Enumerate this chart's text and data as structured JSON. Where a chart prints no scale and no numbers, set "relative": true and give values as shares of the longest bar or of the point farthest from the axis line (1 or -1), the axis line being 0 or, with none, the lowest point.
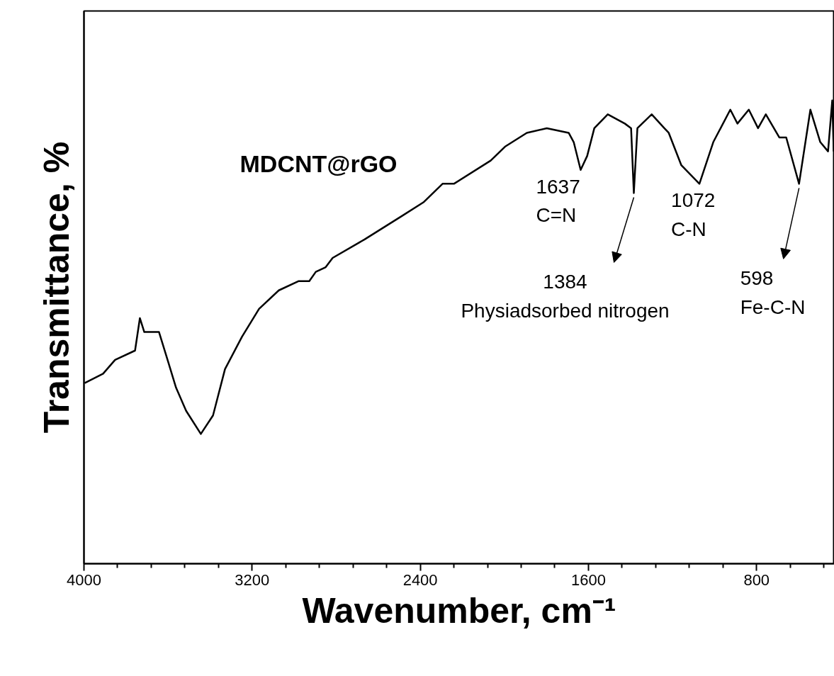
{
  "chart_data": {
    "type": "line",
    "title": "MDCNT@rGO",
    "xlabel": "Wavenumber, cm⁻¹",
    "ylabel": "Transmittance, %",
    "relative": true,
    "grid": false,
    "marker": "none",
    "line_style": "solid",
    "xlim": [
      4000,
      430
    ],
    "xticks": [
      4000,
      {
        "value": 3840,
        "label": null
      },
      {
        "value": 3680,
        "label": null
      },
      {
        "value": 3520,
        "label": null
      },
      {
        "value": 3360,
        "label": null
      },
      3200,
      {
        "value": 3040,
        "label": null
      },
      {
        "value": 2880,
        "label": null
      },
      {
        "value": 2720,
        "label": null
      },
      {
        "value": 2560,
        "label": null
      },
      2400,
      {
        "value": 2240,
        "label": null
      },
      {
        "value": 2080,
        "label": null
      },
      {
        "value": 1920,
        "label": null
      },
      {
        "value": 1760,
        "label": null
      },
      1600,
      {
        "value": 1440,
        "label": null
      },
      {
        "value": 1280,
        "label": null
      },
      {
        "value": 1120,
        "label": null
      },
      {
        "value": 960,
        "label": null
      },
      800,
      {
        "value": 640,
        "label": null
      },
      {
        "value": 480,
        "label": null
      }
    ],
    "series": [
      {
        "color": "#000000",
        "x": [
          3997,
          3909,
          3852,
          3757,
          3734,
          3713,
          3643,
          3609,
          3562,
          3514,
          3444,
          3386,
          3329,
          3248,
          3167,
          3073,
          2978,
          2928,
          2897,
          2850,
          2817,
          2665,
          2489,
          2385,
          2294,
          2240,
          2065,
          1997,
          1893,
          1798,
          1694,
          1670,
          1637,
          1606,
          1572,
          1508,
          1427,
          1397,
          1384,
          1367,
          1299,
          1239,
          1218,
          1158,
          1072,
          1006,
          925,
          891,
          837,
          793,
          756,
          692,
          659,
          598,
          544,
          497,
          460,
          440,
          433
        ],
        "values": [
          0.39,
          0.41,
          0.44,
          0.46,
          0.53,
          0.5,
          0.5,
          0.45,
          0.38,
          0.33,
          0.28,
          0.32,
          0.42,
          0.49,
          0.55,
          0.59,
          0.61,
          0.61,
          0.63,
          0.64,
          0.66,
          0.7,
          0.75,
          0.78,
          0.82,
          0.82,
          0.87,
          0.9,
          0.93,
          0.94,
          0.93,
          0.91,
          0.85,
          0.88,
          0.94,
          0.97,
          0.95,
          0.94,
          0.8,
          0.94,
          0.97,
          0.94,
          0.93,
          0.86,
          0.82,
          0.91,
          0.98,
          0.95,
          0.98,
          0.94,
          0.97,
          0.92,
          0.92,
          0.82,
          0.98,
          0.91,
          0.89,
          1.0,
          0.89
        ]
      }
    ],
    "annotations": [
      {
        "text": "1637\nC=N",
        "x": 1637,
        "y": 0.85
      },
      {
        "text": "1384\nPhysiadsorbed nitrogen",
        "x": 1384,
        "y": 0.8
      },
      {
        "text": "1072\nC-N",
        "x": 1072,
        "y": 0.82
      },
      {
        "text": "598\nFe-C-N",
        "x": 598,
        "y": 0.82
      }
    ]
  }
}
